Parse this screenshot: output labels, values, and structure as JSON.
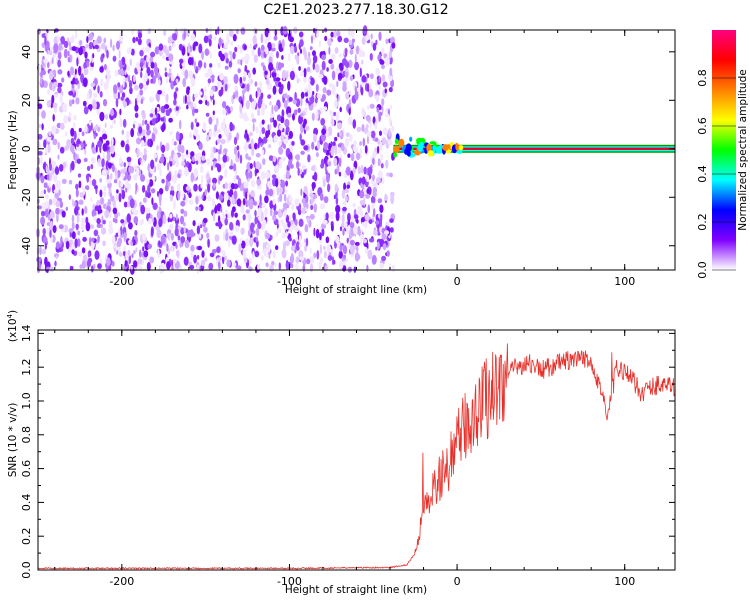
{
  "title": "C2E1.2023.277.18.30.G12",
  "chart_data": [
    {
      "type": "heatmap",
      "xlabel": "Height of straight line (km)",
      "ylabel": "Frequency (Hz)",
      "xlim": [
        -250,
        130
      ],
      "ylim": [
        -50,
        49
      ],
      "xticks": [
        -200,
        -100,
        0,
        100
      ],
      "yticks": [
        -40,
        -20,
        0,
        20,
        40
      ],
      "noise_region_x": [
        -250,
        -38
      ],
      "signal_line_y": 0,
      "colorbar": {
        "label": "Normalized spectral amplitude",
        "range": [
          0,
          1
        ],
        "ticks": [
          "0.0",
          "0.2",
          "0.4",
          "0.6",
          "0.8"
        ],
        "colors": [
          "#ffffff",
          "#8000ff",
          "#0000ff",
          "#00ffff",
          "#00ff00",
          "#ffff00",
          "#ff8000",
          "#ff0000",
          "#ff0080"
        ]
      }
    },
    {
      "type": "line",
      "xlabel": "Height of straight line (km)",
      "ylabel": "SNR (10 * v/v)",
      "y_multiplier": "(x10",
      "y_multiplier_exp": "4",
      "y_multiplier_close": ")",
      "xlim": [
        -250,
        130
      ],
      "ylim": [
        0,
        1.42
      ],
      "xticks": [
        -200,
        -100,
        0,
        100
      ],
      "yticks": [
        "0.0",
        "0.2",
        "0.4",
        "0.6",
        "0.8",
        "1.0",
        "1.2",
        "1.4"
      ],
      "color": "#e8302a",
      "profile": [
        [
          -250,
          0.01
        ],
        [
          -100,
          0.01
        ],
        [
          -40,
          0.015
        ],
        [
          -30,
          0.03
        ],
        [
          -25,
          0.1
        ],
        [
          -20,
          0.35
        ],
        [
          -15,
          0.45
        ],
        [
          -10,
          0.55
        ],
        [
          -5,
          0.62
        ],
        [
          0,
          0.75
        ],
        [
          5,
          0.85
        ],
        [
          10,
          0.92
        ],
        [
          15,
          1.0
        ],
        [
          20,
          1.05
        ],
        [
          25,
          1.1
        ],
        [
          30,
          1.15
        ],
        [
          35,
          1.2
        ],
        [
          40,
          1.22
        ],
        [
          45,
          1.22
        ],
        [
          50,
          1.18
        ],
        [
          55,
          1.2
        ],
        [
          60,
          1.22
        ],
        [
          65,
          1.24
        ],
        [
          70,
          1.23
        ],
        [
          75,
          1.25
        ],
        [
          80,
          1.24
        ],
        [
          85,
          1.1
        ],
        [
          90,
          0.9
        ],
        [
          95,
          1.2
        ],
        [
          100,
          1.18
        ],
        [
          110,
          1.05
        ],
        [
          120,
          1.1
        ],
        [
          130,
          1.08
        ]
      ]
    }
  ]
}
